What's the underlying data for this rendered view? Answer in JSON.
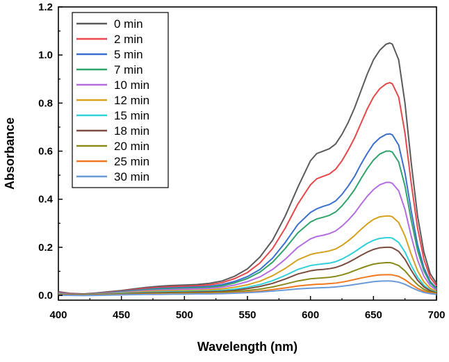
{
  "chart_data": {
    "type": "line",
    "title": "",
    "xlabel": "Wavelength (nm)",
    "ylabel": "Absorbance",
    "xlim": [
      400,
      700
    ],
    "ylim": [
      -0.02,
      1.2
    ],
    "xticks": [
      400,
      450,
      500,
      550,
      600,
      650,
      700
    ],
    "yticks": [
      0.0,
      0.2,
      0.4,
      0.6,
      0.8,
      1.0,
      1.2
    ],
    "ytick_labels": [
      "0.0",
      "0.2",
      "0.4",
      "0.6",
      "0.8",
      "1.0",
      "1.2"
    ],
    "grid": false,
    "legend_position": "top-left",
    "x": [
      400,
      410,
      420,
      430,
      440,
      450,
      460,
      470,
      480,
      490,
      500,
      510,
      520,
      530,
      540,
      550,
      560,
      570,
      580,
      590,
      600,
      605,
      610,
      615,
      620,
      625,
      630,
      635,
      640,
      645,
      650,
      655,
      660,
      663,
      665,
      670,
      675,
      680,
      685,
      690,
      695,
      700
    ],
    "series": [
      {
        "name": "0 min",
        "color": "#5a5a5a",
        "values": [
          0.015,
          0.008,
          0.006,
          0.01,
          0.015,
          0.02,
          0.027,
          0.033,
          0.038,
          0.041,
          0.043,
          0.045,
          0.05,
          0.06,
          0.08,
          0.11,
          0.16,
          0.23,
          0.33,
          0.45,
          0.56,
          0.59,
          0.6,
          0.61,
          0.63,
          0.67,
          0.72,
          0.78,
          0.85,
          0.92,
          0.98,
          1.02,
          1.045,
          1.05,
          1.045,
          0.98,
          0.8,
          0.55,
          0.33,
          0.18,
          0.09,
          0.05
        ]
      },
      {
        "name": "2 min",
        "color": "#e8474a",
        "values": [
          0.012,
          0.007,
          0.005,
          0.009,
          0.013,
          0.018,
          0.024,
          0.029,
          0.033,
          0.036,
          0.038,
          0.04,
          0.044,
          0.053,
          0.07,
          0.095,
          0.135,
          0.195,
          0.28,
          0.38,
          0.46,
          0.485,
          0.495,
          0.505,
          0.525,
          0.56,
          0.605,
          0.655,
          0.715,
          0.775,
          0.825,
          0.86,
          0.88,
          0.885,
          0.88,
          0.825,
          0.675,
          0.465,
          0.28,
          0.15,
          0.075,
          0.04
        ]
      },
      {
        "name": "5 min",
        "color": "#3a6fcf",
        "values": [
          0.01,
          0.006,
          0.004,
          0.008,
          0.011,
          0.016,
          0.021,
          0.025,
          0.029,
          0.031,
          0.033,
          0.035,
          0.038,
          0.045,
          0.058,
          0.078,
          0.108,
          0.155,
          0.22,
          0.295,
          0.345,
          0.36,
          0.37,
          0.378,
          0.393,
          0.42,
          0.455,
          0.495,
          0.545,
          0.59,
          0.63,
          0.655,
          0.67,
          0.672,
          0.668,
          0.625,
          0.51,
          0.35,
          0.21,
          0.115,
          0.058,
          0.03
        ]
      },
      {
        "name": "7 min",
        "color": "#2fa36a",
        "values": [
          0.009,
          0.005,
          0.004,
          0.007,
          0.01,
          0.014,
          0.019,
          0.023,
          0.026,
          0.028,
          0.03,
          0.031,
          0.034,
          0.04,
          0.052,
          0.07,
          0.097,
          0.138,
          0.195,
          0.26,
          0.305,
          0.318,
          0.325,
          0.333,
          0.347,
          0.372,
          0.404,
          0.44,
          0.485,
          0.527,
          0.563,
          0.588,
          0.6,
          0.6,
          0.596,
          0.555,
          0.455,
          0.312,
          0.187,
          0.102,
          0.052,
          0.027
        ]
      },
      {
        "name": "10 min",
        "color": "#b46de0",
        "values": [
          0.008,
          0.005,
          0.003,
          0.006,
          0.009,
          0.012,
          0.016,
          0.02,
          0.022,
          0.024,
          0.026,
          0.027,
          0.029,
          0.034,
          0.043,
          0.057,
          0.077,
          0.108,
          0.15,
          0.2,
          0.235,
          0.245,
          0.25,
          0.257,
          0.268,
          0.288,
          0.313,
          0.342,
          0.378,
          0.412,
          0.44,
          0.46,
          0.47,
          0.47,
          0.466,
          0.435,
          0.357,
          0.245,
          0.147,
          0.08,
          0.041,
          0.022
        ]
      },
      {
        "name": "12 min",
        "color": "#d5a11e",
        "values": [
          0.006,
          0.004,
          0.003,
          0.005,
          0.007,
          0.01,
          0.013,
          0.016,
          0.018,
          0.019,
          0.02,
          0.021,
          0.023,
          0.027,
          0.034,
          0.044,
          0.059,
          0.082,
          0.112,
          0.148,
          0.17,
          0.176,
          0.18,
          0.185,
          0.193,
          0.208,
          0.227,
          0.249,
          0.274,
          0.297,
          0.316,
          0.327,
          0.33,
          0.33,
          0.327,
          0.303,
          0.247,
          0.17,
          0.102,
          0.056,
          0.029,
          0.016
        ]
      },
      {
        "name": "15 min",
        "color": "#2fd0d8",
        "values": [
          0.005,
          0.003,
          0.002,
          0.004,
          0.006,
          0.008,
          0.01,
          0.012,
          0.014,
          0.015,
          0.016,
          0.017,
          0.018,
          0.021,
          0.026,
          0.034,
          0.045,
          0.061,
          0.083,
          0.108,
          0.124,
          0.128,
          0.131,
          0.134,
          0.14,
          0.151,
          0.165,
          0.181,
          0.199,
          0.216,
          0.229,
          0.237,
          0.24,
          0.24,
          0.238,
          0.22,
          0.18,
          0.124,
          0.075,
          0.042,
          0.022,
          0.013
        ]
      },
      {
        "name": "18 min",
        "color": "#7b4a3f",
        "values": [
          0.004,
          0.003,
          0.002,
          0.003,
          0.005,
          0.006,
          0.008,
          0.01,
          0.011,
          0.012,
          0.013,
          0.014,
          0.015,
          0.017,
          0.021,
          0.028,
          0.037,
          0.05,
          0.068,
          0.089,
          0.102,
          0.106,
          0.108,
          0.111,
          0.116,
          0.125,
          0.137,
          0.151,
          0.166,
          0.18,
          0.191,
          0.198,
          0.2,
          0.2,
          0.198,
          0.183,
          0.15,
          0.104,
          0.063,
          0.035,
          0.019,
          0.011
        ]
      },
      {
        "name": "20 min",
        "color": "#8a8a1a",
        "values": [
          0.003,
          0.002,
          0.001,
          0.002,
          0.004,
          0.005,
          0.006,
          0.007,
          0.008,
          0.009,
          0.01,
          0.01,
          0.011,
          0.013,
          0.016,
          0.02,
          0.026,
          0.035,
          0.047,
          0.06,
          0.069,
          0.071,
          0.073,
          0.075,
          0.079,
          0.085,
          0.093,
          0.103,
          0.113,
          0.122,
          0.13,
          0.134,
          0.136,
          0.136,
          0.134,
          0.124,
          0.102,
          0.071,
          0.044,
          0.025,
          0.014,
          0.009
        ]
      },
      {
        "name": "25 min",
        "color": "#f0781e",
        "values": [
          0.002,
          0.001,
          0.0,
          0.001,
          0.002,
          0.003,
          0.004,
          0.005,
          0.006,
          0.006,
          0.007,
          0.007,
          0.008,
          0.009,
          0.011,
          0.014,
          0.018,
          0.024,
          0.031,
          0.039,
          0.044,
          0.046,
          0.047,
          0.049,
          0.051,
          0.055,
          0.06,
          0.066,
          0.072,
          0.077,
          0.082,
          0.085,
          0.086,
          0.086,
          0.085,
          0.079,
          0.065,
          0.046,
          0.029,
          0.017,
          0.01,
          0.006
        ]
      },
      {
        "name": "30 min",
        "color": "#6a9ad8",
        "values": [
          0.001,
          0.0,
          -0.001,
          0.0,
          0.001,
          0.002,
          0.003,
          0.004,
          0.004,
          0.005,
          0.005,
          0.006,
          0.006,
          0.007,
          0.009,
          0.011,
          0.014,
          0.018,
          0.022,
          0.027,
          0.03,
          0.031,
          0.032,
          0.033,
          0.035,
          0.038,
          0.041,
          0.045,
          0.049,
          0.053,
          0.057,
          0.059,
          0.06,
          0.06,
          0.059,
          0.055,
          0.046,
          0.033,
          0.021,
          0.012,
          0.007,
          0.004
        ]
      }
    ]
  }
}
